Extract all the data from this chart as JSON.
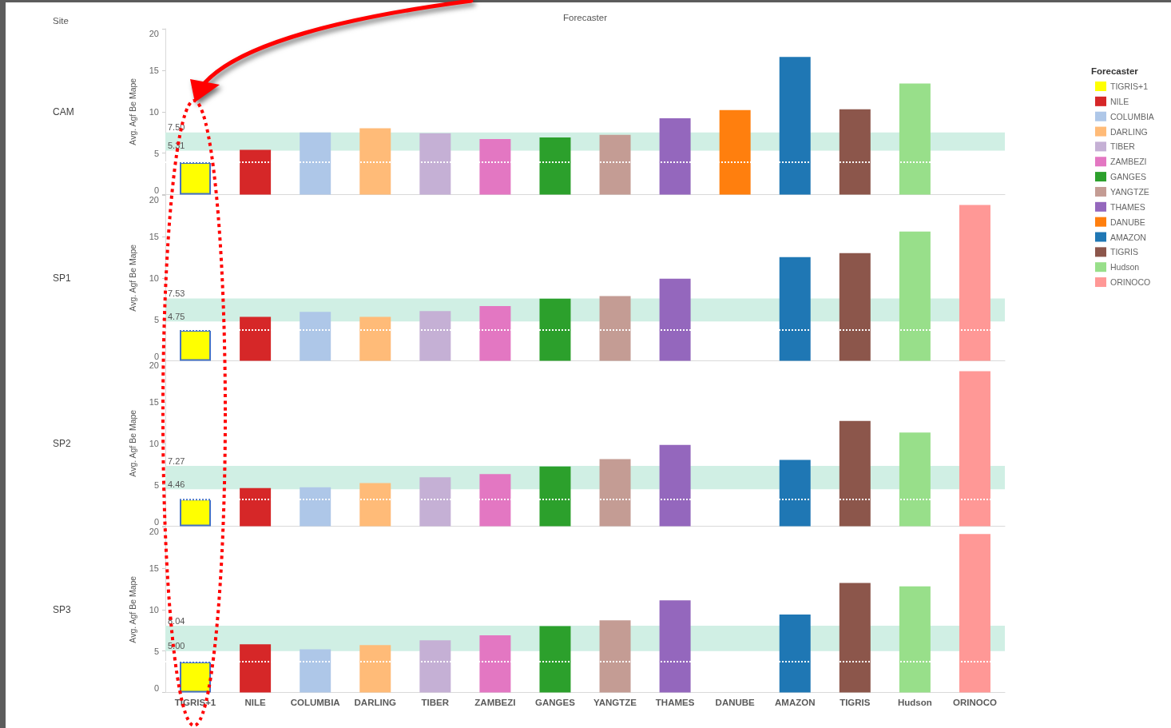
{
  "chart_data": [
    {
      "type": "bar",
      "xlabel": "Forecaster",
      "ylabel": "Avg. Agf Be Mape",
      "legend_title": "Forecaster",
      "legend": "right",
      "tick_labels": "y",
      "grid": false,
      "ylim": [
        0,
        20
      ],
      "yticks": [
        0,
        5,
        10,
        15,
        20
      ],
      "annotations": [
        "Site",
        "CAM",
        {
          "text": "7.50",
          "y": 7.5
        },
        {
          "text": "5.31",
          "y": 5.31
        }
      ],
      "bands": [
        {
          "axis": "y",
          "from": 5.31,
          "to": 7.5,
          "color": "#d0efe4"
        }
      ],
      "ref_lines": [
        {
          "axis": "y",
          "value": 3.9,
          "label": null,
          "color": "#ffffff",
          "line_style": "dotted"
        }
      ],
      "categories": [
        null,
        null,
        null,
        null,
        null,
        null,
        null,
        null,
        null,
        null,
        null,
        null,
        null,
        null
      ],
      "series": [
        {
          "name": "TIGRIS+1",
          "color": "#ffff00",
          "values": [
            3.9,
            null,
            null,
            null,
            null,
            null,
            null,
            null,
            null,
            null,
            null,
            null,
            null,
            null
          ]
        },
        {
          "name": "NILE",
          "color": "#d62728",
          "values": [
            null,
            5.4,
            null,
            null,
            null,
            null,
            null,
            null,
            null,
            null,
            null,
            null,
            null,
            null
          ]
        },
        {
          "name": "COLUMBIA",
          "color": "#aec7e8",
          "values": [
            null,
            null,
            7.5,
            null,
            null,
            null,
            null,
            null,
            null,
            null,
            null,
            null,
            null,
            null
          ]
        },
        {
          "name": "DARLING",
          "color": "#ffbb78",
          "values": [
            null,
            null,
            null,
            8.0,
            null,
            null,
            null,
            null,
            null,
            null,
            null,
            null,
            null,
            null
          ]
        },
        {
          "name": "TIBER",
          "color": "#c5b0d5",
          "values": [
            null,
            null,
            null,
            null,
            7.4,
            null,
            null,
            null,
            null,
            null,
            null,
            null,
            null,
            null
          ]
        },
        {
          "name": "ZAMBEZI",
          "color": "#e377c2",
          "values": [
            null,
            null,
            null,
            null,
            null,
            6.7,
            null,
            null,
            null,
            null,
            null,
            null,
            null,
            null
          ]
        },
        {
          "name": "GANGES",
          "color": "#2ca02c",
          "values": [
            null,
            null,
            null,
            null,
            null,
            null,
            6.9,
            null,
            null,
            null,
            null,
            null,
            null,
            null
          ]
        },
        {
          "name": "YANGTZE",
          "color": "#c49c94",
          "values": [
            null,
            null,
            null,
            null,
            null,
            null,
            null,
            7.2,
            null,
            null,
            null,
            null,
            null,
            null
          ]
        },
        {
          "name": "THAMES",
          "color": "#9467bd",
          "values": [
            null,
            null,
            null,
            null,
            null,
            null,
            null,
            null,
            9.2,
            null,
            null,
            null,
            null,
            null
          ]
        },
        {
          "name": "DANUBE",
          "color": "#ff7f0e",
          "values": [
            null,
            null,
            null,
            null,
            null,
            null,
            null,
            null,
            null,
            10.2,
            null,
            null,
            null,
            null
          ]
        },
        {
          "name": "AMAZON",
          "color": "#1f77b4",
          "values": [
            null,
            null,
            null,
            null,
            null,
            null,
            null,
            null,
            null,
            null,
            16.6,
            null,
            null,
            null
          ]
        },
        {
          "name": "TIGRIS",
          "color": "#8c564b",
          "values": [
            null,
            null,
            null,
            null,
            null,
            null,
            null,
            null,
            null,
            null,
            null,
            10.3,
            null,
            null
          ]
        },
        {
          "name": "Hudson",
          "color": "#98df8a",
          "values": [
            null,
            null,
            null,
            null,
            null,
            null,
            null,
            null,
            null,
            null,
            null,
            null,
            13.4,
            null
          ]
        },
        {
          "name": "ORINOCO",
          "color": "#ff9896",
          "values": [
            null,
            null,
            null,
            null,
            null,
            null,
            null,
            null,
            null,
            null,
            null,
            null,
            null,
            null
          ]
        }
      ]
    },
    {
      "type": "bar",
      "ylabel": "Avg. Agf Be Mape",
      "tick_labels": "y",
      "grid": false,
      "ylim": [
        0,
        20
      ],
      "yticks": [
        0,
        5,
        10,
        15,
        20
      ],
      "annotations": [
        "SP1",
        {
          "text": "7.53",
          "y": 7.53
        },
        {
          "text": "4.75",
          "y": 4.75
        }
      ],
      "bands": [
        {
          "axis": "y",
          "from": 4.75,
          "to": 7.53,
          "color": "#d0efe4"
        }
      ],
      "ref_lines": [
        {
          "axis": "y",
          "value": 3.7,
          "label": null,
          "color": "#ffffff",
          "line_style": "dotted"
        }
      ],
      "categories": [
        null,
        null,
        null,
        null,
        null,
        null,
        null,
        null,
        null,
        null,
        null,
        null,
        null,
        null
      ],
      "series": [
        {
          "color": "#ffff00",
          "values": [
            3.7,
            null,
            null,
            null,
            null,
            null,
            null,
            null,
            null,
            null,
            null,
            null,
            null,
            null
          ]
        },
        {
          "color": "#d62728",
          "values": [
            null,
            5.3,
            null,
            null,
            null,
            null,
            null,
            null,
            null,
            null,
            null,
            null,
            null,
            null
          ]
        },
        {
          "color": "#aec7e8",
          "values": [
            null,
            null,
            5.9,
            null,
            null,
            null,
            null,
            null,
            null,
            null,
            null,
            null,
            null,
            null
          ]
        },
        {
          "color": "#ffbb78",
          "values": [
            null,
            null,
            null,
            5.3,
            null,
            null,
            null,
            null,
            null,
            null,
            null,
            null,
            null,
            null
          ]
        },
        {
          "color": "#c5b0d5",
          "values": [
            null,
            null,
            null,
            null,
            6.0,
            null,
            null,
            null,
            null,
            null,
            null,
            null,
            null,
            null
          ]
        },
        {
          "color": "#e377c2",
          "values": [
            null,
            null,
            null,
            null,
            null,
            6.6,
            null,
            null,
            null,
            null,
            null,
            null,
            null,
            null
          ]
        },
        {
          "color": "#2ca02c",
          "values": [
            null,
            null,
            null,
            null,
            null,
            null,
            7.5,
            null,
            null,
            null,
            null,
            null,
            null,
            null
          ]
        },
        {
          "color": "#c49c94",
          "values": [
            null,
            null,
            null,
            null,
            null,
            null,
            null,
            7.8,
            null,
            null,
            null,
            null,
            null,
            null
          ]
        },
        {
          "color": "#9467bd",
          "values": [
            null,
            null,
            null,
            null,
            null,
            null,
            null,
            null,
            9.9,
            null,
            null,
            null,
            null,
            null
          ]
        },
        {
          "color": "#ff7f0e",
          "values": [
            null,
            null,
            null,
            null,
            null,
            null,
            null,
            null,
            null,
            null,
            null,
            null,
            null,
            null
          ]
        },
        {
          "color": "#1f77b4",
          "values": [
            null,
            null,
            null,
            null,
            null,
            null,
            null,
            null,
            null,
            null,
            12.5,
            null,
            null,
            null
          ]
        },
        {
          "color": "#8c564b",
          "values": [
            null,
            null,
            null,
            null,
            null,
            null,
            null,
            null,
            null,
            null,
            null,
            13.0,
            null,
            null
          ]
        },
        {
          "color": "#98df8a",
          "values": [
            null,
            null,
            null,
            null,
            null,
            null,
            null,
            null,
            null,
            null,
            null,
            null,
            15.6,
            null
          ]
        },
        {
          "color": "#ff9896",
          "values": [
            null,
            null,
            null,
            null,
            null,
            null,
            null,
            null,
            null,
            null,
            null,
            null,
            null,
            18.8
          ]
        }
      ]
    },
    {
      "type": "bar",
      "ylabel": "Avg. Agf Be Mape",
      "tick_labels": "y",
      "grid": false,
      "ylim": [
        0,
        20
      ],
      "yticks": [
        0,
        5,
        10,
        15,
        20
      ],
      "annotations": [
        "SP2",
        {
          "text": "7.27",
          "y": 7.27
        },
        {
          "text": "4.46",
          "y": 4.46
        }
      ],
      "bands": [
        {
          "axis": "y",
          "from": 4.46,
          "to": 7.27,
          "color": "#d0efe4"
        }
      ],
      "ref_lines": [
        {
          "axis": "y",
          "value": 3.3,
          "label": null,
          "color": "#ffffff",
          "line_style": "dotted"
        }
      ],
      "categories": [
        null,
        null,
        null,
        null,
        null,
        null,
        null,
        null,
        null,
        null,
        null,
        null,
        null,
        null
      ],
      "series": [
        {
          "color": "#ffff00",
          "values": [
            3.3,
            null,
            null,
            null,
            null,
            null,
            null,
            null,
            null,
            null,
            null,
            null,
            null,
            null
          ]
        },
        {
          "color": "#d62728",
          "values": [
            null,
            4.6,
            null,
            null,
            null,
            null,
            null,
            null,
            null,
            null,
            null,
            null,
            null,
            null
          ]
        },
        {
          "color": "#aec7e8",
          "values": [
            null,
            null,
            4.7,
            null,
            null,
            null,
            null,
            null,
            null,
            null,
            null,
            null,
            null,
            null
          ]
        },
        {
          "color": "#ffbb78",
          "values": [
            null,
            null,
            null,
            5.2,
            null,
            null,
            null,
            null,
            null,
            null,
            null,
            null,
            null,
            null
          ]
        },
        {
          "color": "#c5b0d5",
          "values": [
            null,
            null,
            null,
            null,
            5.9,
            null,
            null,
            null,
            null,
            null,
            null,
            null,
            null,
            null
          ]
        },
        {
          "color": "#e377c2",
          "values": [
            null,
            null,
            null,
            null,
            null,
            6.3,
            null,
            null,
            null,
            null,
            null,
            null,
            null,
            null
          ]
        },
        {
          "color": "#2ca02c",
          "values": [
            null,
            null,
            null,
            null,
            null,
            null,
            7.2,
            null,
            null,
            null,
            null,
            null,
            null,
            null
          ]
        },
        {
          "color": "#c49c94",
          "values": [
            null,
            null,
            null,
            null,
            null,
            null,
            null,
            8.1,
            null,
            null,
            null,
            null,
            null,
            null
          ]
        },
        {
          "color": "#9467bd",
          "values": [
            null,
            null,
            null,
            null,
            null,
            null,
            null,
            null,
            9.8,
            null,
            null,
            null,
            null,
            null
          ]
        },
        {
          "color": "#ff7f0e",
          "values": [
            null,
            null,
            null,
            null,
            null,
            null,
            null,
            null,
            null,
            null,
            null,
            null,
            null,
            null
          ]
        },
        {
          "color": "#1f77b4",
          "values": [
            null,
            null,
            null,
            null,
            null,
            null,
            null,
            null,
            null,
            null,
            8.0,
            null,
            null,
            null
          ]
        },
        {
          "color": "#8c564b",
          "values": [
            null,
            null,
            null,
            null,
            null,
            null,
            null,
            null,
            null,
            null,
            null,
            12.7,
            null,
            null
          ]
        },
        {
          "color": "#98df8a",
          "values": [
            null,
            null,
            null,
            null,
            null,
            null,
            null,
            null,
            null,
            null,
            null,
            null,
            11.3,
            null
          ]
        },
        {
          "color": "#ff9896",
          "values": [
            null,
            null,
            null,
            null,
            null,
            null,
            null,
            null,
            null,
            null,
            null,
            null,
            null,
            18.7
          ]
        }
      ]
    },
    {
      "type": "bar",
      "ylabel": "Avg. Agf Be Mape",
      "grid": false,
      "ylim": [
        0,
        20
      ],
      "yticks": [
        0,
        5,
        10,
        15,
        20
      ],
      "annotations": [
        "SP3",
        {
          "text": "8.04",
          "y": 8.04
        },
        {
          "text": "5.00",
          "y": 5.0
        }
      ],
      "bands": [
        {
          "axis": "y",
          "from": 5.0,
          "to": 8.04,
          "color": "#d0efe4"
        }
      ],
      "ref_lines": [
        {
          "axis": "y",
          "value": 3.7,
          "label": null,
          "color": "#ffffff",
          "line_style": "dotted"
        }
      ],
      "categories": [
        "TIGRIS+1",
        "NILE",
        "COLUMBIA",
        "DARLING",
        "TIBER",
        "ZAMBEZI",
        "GANGES",
        "YANGTZE",
        "THAMES",
        "DANUBE",
        "AMAZON",
        "TIGRIS",
        "Hudson",
        "ORINOCO"
      ],
      "series": [
        {
          "color": "#ffff00",
          "values": [
            3.7,
            null,
            null,
            null,
            null,
            null,
            null,
            null,
            null,
            null,
            null,
            null,
            null,
            null
          ]
        },
        {
          "color": "#d62728",
          "values": [
            null,
            5.8,
            null,
            null,
            null,
            null,
            null,
            null,
            null,
            null,
            null,
            null,
            null,
            null
          ]
        },
        {
          "color": "#aec7e8",
          "values": [
            null,
            null,
            5.2,
            null,
            null,
            null,
            null,
            null,
            null,
            null,
            null,
            null,
            null,
            null
          ]
        },
        {
          "color": "#ffbb78",
          "values": [
            null,
            null,
            null,
            5.7,
            null,
            null,
            null,
            null,
            null,
            null,
            null,
            null,
            null,
            null
          ]
        },
        {
          "color": "#c5b0d5",
          "values": [
            null,
            null,
            null,
            null,
            6.3,
            null,
            null,
            null,
            null,
            null,
            null,
            null,
            null,
            null
          ]
        },
        {
          "color": "#e377c2",
          "values": [
            null,
            null,
            null,
            null,
            null,
            6.9,
            null,
            null,
            null,
            null,
            null,
            null,
            null,
            null
          ]
        },
        {
          "color": "#2ca02c",
          "values": [
            null,
            null,
            null,
            null,
            null,
            null,
            8.0,
            null,
            null,
            null,
            null,
            null,
            null,
            null
          ]
        },
        {
          "color": "#c49c94",
          "values": [
            null,
            null,
            null,
            null,
            null,
            null,
            null,
            8.7,
            null,
            null,
            null,
            null,
            null,
            null
          ]
        },
        {
          "color": "#9467bd",
          "values": [
            null,
            null,
            null,
            null,
            null,
            null,
            null,
            null,
            11.1,
            null,
            null,
            null,
            null,
            null
          ]
        },
        {
          "color": "#ff7f0e",
          "values": [
            null,
            null,
            null,
            null,
            null,
            null,
            null,
            null,
            null,
            null,
            null,
            null,
            null,
            null
          ]
        },
        {
          "color": "#1f77b4",
          "values": [
            null,
            null,
            null,
            null,
            null,
            null,
            null,
            null,
            null,
            null,
            9.4,
            null,
            null,
            null
          ]
        },
        {
          "color": "#8c564b",
          "values": [
            null,
            null,
            null,
            null,
            null,
            null,
            null,
            null,
            null,
            null,
            null,
            13.2,
            null,
            null
          ]
        },
        {
          "color": "#98df8a",
          "values": [
            null,
            null,
            null,
            null,
            null,
            null,
            null,
            null,
            null,
            null,
            null,
            null,
            12.8,
            null
          ]
        },
        {
          "color": "#ff9896",
          "values": [
            null,
            null,
            null,
            null,
            null,
            null,
            null,
            null,
            null,
            null,
            null,
            null,
            null,
            19.1
          ]
        }
      ]
    }
  ]
}
